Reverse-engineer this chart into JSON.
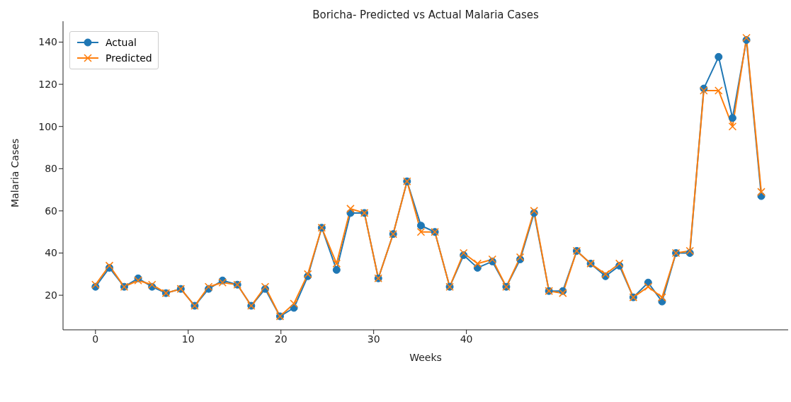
{
  "chart_data": {
    "type": "line",
    "title": "Boricha- Predicted vs Actual Malaria Cases",
    "xlabel": "Weeks",
    "ylabel": "Malaria Cases",
    "x": [
      0,
      1.5,
      3.1,
      4.6,
      6.1,
      7.6,
      9.2,
      10.7,
      12.2,
      13.7,
      15.3,
      16.8,
      18.3,
      19.9,
      21.4,
      22.9,
      24.4,
      26.0,
      27.5,
      29.0,
      30.5,
      32.1,
      33.6,
      35.1,
      36.6,
      38.2,
      39.7,
      41.2,
      42.8,
      44.3,
      45.8,
      47.3,
      48.9,
      50.4,
      51.9,
      53.4,
      55.0,
      56.5,
      58.0,
      59.6,
      61.1,
      62.6,
      64.1,
      65.6,
      67.2,
      68.7,
      70.2,
      71.8
    ],
    "series": [
      {
        "name": "Actual",
        "color": "#1f77b4",
        "marker": "circle",
        "values": [
          24,
          33,
          24,
          28,
          24,
          21,
          23,
          15,
          23,
          27,
          25,
          15,
          23,
          10,
          14,
          29,
          52,
          32,
          59,
          59,
          28,
          49,
          74,
          53,
          50,
          24,
          39,
          33,
          36,
          24,
          37,
          59,
          22,
          22,
          41,
          35,
          29,
          34,
          19,
          26,
          17,
          40,
          40,
          118,
          133,
          104,
          141,
          67
        ]
      },
      {
        "name": "Predicted",
        "color": "#ff7f0e",
        "marker": "cross",
        "values": [
          25,
          34,
          24,
          27,
          25,
          21,
          23,
          15,
          24,
          26,
          25,
          15,
          24,
          10,
          16,
          30,
          52,
          35,
          61,
          59,
          28,
          49,
          74,
          50,
          50,
          24,
          40,
          35,
          37,
          24,
          38,
          60,
          22,
          21,
          41,
          35,
          30,
          35,
          19,
          24,
          19,
          40,
          41,
          117,
          117,
          100,
          142,
          69
        ]
      }
    ],
    "xlim": [
      -3.5,
      74.7
    ],
    "xticks": [
      0,
      10,
      20,
      30,
      40
    ],
    "ylim": [
      3.6,
      149.9
    ],
    "yticks": [
      20,
      40,
      60,
      80,
      100,
      120,
      140
    ],
    "grid": false,
    "legend": "top left",
    "line_style": "solid"
  }
}
